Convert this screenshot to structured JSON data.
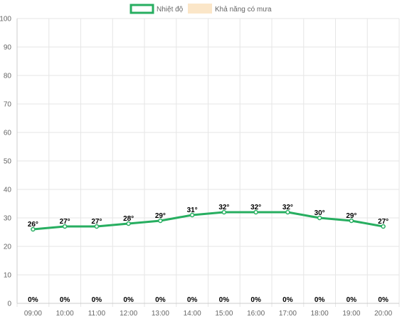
{
  "chart_data": {
    "type": "line",
    "categories": [
      "09:00",
      "10:00",
      "11:00",
      "12:00",
      "13:00",
      "14:00",
      "15:00",
      "16:00",
      "17:00",
      "18:00",
      "19:00",
      "20:00"
    ],
    "series": [
      {
        "name": "Nhiệt độ",
        "type": "line",
        "values": [
          26,
          27,
          27,
          28,
          29,
          31,
          32,
          32,
          32,
          30,
          29,
          27
        ],
        "labels": [
          "26°",
          "27°",
          "27°",
          "28°",
          "29°",
          "31°",
          "32°",
          "32°",
          "32°",
          "30°",
          "29°",
          "27°"
        ],
        "color": "#27ae60"
      },
      {
        "name": "Khả năng có mưa",
        "type": "bar",
        "values": [
          0,
          0,
          0,
          0,
          0,
          0,
          0,
          0,
          0,
          0,
          0,
          0
        ],
        "labels": [
          "0%",
          "0%",
          "0%",
          "0%",
          "0%",
          "0%",
          "0%",
          "0%",
          "0%",
          "0%",
          "0%",
          "0%"
        ],
        "color": "#fbe6c8"
      }
    ],
    "yticks": [
      "0",
      "10",
      "20",
      "30",
      "40",
      "50",
      "60",
      "70",
      "80",
      "90",
      "100"
    ],
    "ylim": [
      0,
      100
    ],
    "grid": true,
    "legend": "top"
  }
}
